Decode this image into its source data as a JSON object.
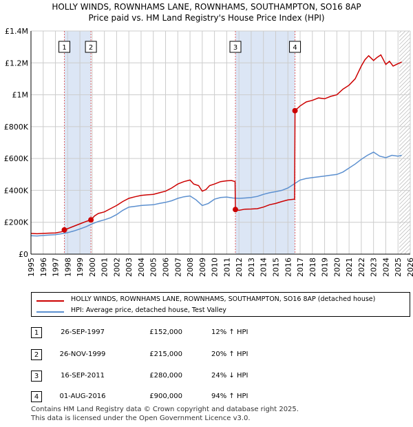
{
  "colors": {
    "property": "#cc0000",
    "hpi": "#5b8fcf",
    "band": "#dce6f5",
    "grid": "#cccccc",
    "sale_line": "#e06060"
  },
  "chart_data": {
    "type": "line",
    "title": "HOLLY WINDS, ROWNHAMS LANE, ROWNHAMS, SOUTHAMPTON, SO16 8AP",
    "subtitle": "Price paid vs. HM Land Registry's House Price Index (HPI)",
    "xlim": [
      1995,
      2026
    ],
    "ylim": [
      0,
      1400000
    ],
    "y_ticks": [
      {
        "value": 0,
        "label": "£0"
      },
      {
        "value": 200000,
        "label": "£200K"
      },
      {
        "value": 400000,
        "label": "£400K"
      },
      {
        "value": 600000,
        "label": "£600K"
      },
      {
        "value": 800000,
        "label": "£800K"
      },
      {
        "value": 1000000,
        "label": "£1M"
      },
      {
        "value": 1200000,
        "label": "£1.2M"
      },
      {
        "value": 1400000,
        "label": "£1.4M"
      }
    ],
    "x_ticks": [
      "1995",
      "1996",
      "1997",
      "1998",
      "1999",
      "2000",
      "2001",
      "2002",
      "2003",
      "2004",
      "2005",
      "2006",
      "2007",
      "2008",
      "2009",
      "2010",
      "2011",
      "2012",
      "2013",
      "2014",
      "2015",
      "2016",
      "2017",
      "2018",
      "2019",
      "2020",
      "2021",
      "2022",
      "2023",
      "2024",
      "2025",
      "2026"
    ],
    "shaded_ranges": [
      [
        1997.73,
        1999.9
      ],
      [
        2011.71,
        2016.58
      ]
    ],
    "future_start": 2025.1,
    "series": [
      {
        "name": "HOLLY WINDS, ROWNHAMS LANE, ROWNHAMS, SOUTHAMPTON, SO16 8AP (detached house)",
        "x": [
          1995.0,
          1995.5,
          1996.0,
          1996.5,
          1997.0,
          1997.5,
          1997.73,
          1998.0,
          1998.5,
          1999.0,
          1999.5,
          1999.9,
          2000.2,
          2000.5,
          2001.0,
          2001.5,
          2002.0,
          2002.5,
          2003.0,
          2003.5,
          2004.0,
          2004.5,
          2005.0,
          2005.5,
          2006.0,
          2006.5,
          2007.0,
          2007.5,
          2008.0,
          2008.3,
          2008.7,
          2009.0,
          2009.3,
          2009.6,
          2010.0,
          2010.5,
          2011.0,
          2011.4,
          2011.68,
          2011.71,
          2012.0,
          2012.5,
          2013.0,
          2013.5,
          2014.0,
          2014.5,
          2015.0,
          2015.5,
          2016.0,
          2016.5,
          2016.55,
          2016.58,
          2017.0,
          2017.5,
          2018.0,
          2018.5,
          2019.0,
          2019.5,
          2020.0,
          2020.5,
          2021.0,
          2021.5,
          2022.0,
          2022.3,
          2022.6,
          2023.0,
          2023.3,
          2023.6,
          2024.0,
          2024.3,
          2024.6,
          2025.0,
          2025.3
        ],
        "y": [
          130000,
          128000,
          130000,
          132000,
          133000,
          140000,
          152000,
          160000,
          175000,
          190000,
          205000,
          215000,
          240000,
          255000,
          265000,
          285000,
          305000,
          330000,
          350000,
          360000,
          368000,
          372000,
          375000,
          385000,
          395000,
          415000,
          440000,
          455000,
          465000,
          440000,
          430000,
          395000,
          405000,
          430000,
          440000,
          455000,
          460000,
          462000,
          455000,
          280000,
          275000,
          282000,
          283000,
          285000,
          295000,
          310000,
          318000,
          330000,
          340000,
          345000,
          345000,
          900000,
          930000,
          955000,
          965000,
          980000,
          975000,
          990000,
          1000000,
          1035000,
          1060000,
          1100000,
          1180000,
          1220000,
          1245000,
          1215000,
          1235000,
          1250000,
          1190000,
          1210000,
          1180000,
          1195000,
          1205000
        ]
      },
      {
        "name": "HPI: Average price, detached house, Test Valley",
        "x": [
          1995.0,
          1995.5,
          1996.0,
          1996.5,
          1997.0,
          1997.5,
          1998.0,
          1998.5,
          1999.0,
          1999.5,
          2000.0,
          2000.5,
          2001.0,
          2001.5,
          2002.0,
          2002.5,
          2003.0,
          2003.5,
          2004.0,
          2004.5,
          2005.0,
          2005.5,
          2006.0,
          2006.5,
          2007.0,
          2007.5,
          2008.0,
          2008.5,
          2009.0,
          2009.5,
          2010.0,
          2010.5,
          2011.0,
          2011.5,
          2012.0,
          2012.5,
          2013.0,
          2013.5,
          2014.0,
          2014.5,
          2015.0,
          2015.5,
          2016.0,
          2016.5,
          2017.0,
          2017.5,
          2018.0,
          2018.5,
          2019.0,
          2019.5,
          2020.0,
          2020.5,
          2021.0,
          2021.5,
          2022.0,
          2022.5,
          2023.0,
          2023.5,
          2024.0,
          2024.5,
          2025.0,
          2025.3
        ],
        "y": [
          116000,
          114000,
          117000,
          120000,
          122000,
          128000,
          135000,
          145000,
          158000,
          172000,
          190000,
          205000,
          215000,
          228000,
          248000,
          275000,
          295000,
          300000,
          305000,
          308000,
          310000,
          318000,
          325000,
          335000,
          350000,
          360000,
          365000,
          340000,
          305000,
          318000,
          345000,
          355000,
          358000,
          352000,
          350000,
          352000,
          355000,
          362000,
          375000,
          385000,
          392000,
          400000,
          415000,
          440000,
          465000,
          475000,
          480000,
          485000,
          490000,
          495000,
          500000,
          515000,
          540000,
          565000,
          595000,
          620000,
          640000,
          615000,
          605000,
          620000,
          615000,
          620000
        ]
      }
    ],
    "sales": [
      {
        "label": "1",
        "x": 1997.73,
        "y": 152000
      },
      {
        "label": "2",
        "x": 1999.9,
        "y": 215000
      },
      {
        "label": "3",
        "x": 2011.71,
        "y": 280000
      },
      {
        "label": "4",
        "x": 2016.58,
        "y": 900000
      }
    ]
  },
  "legend": {
    "property": "HOLLY WINDS, ROWNHAMS LANE, ROWNHAMS, SOUTHAMPTON, SO16 8AP (detached house)",
    "hpi": "HPI: Average price, detached house, Test Valley"
  },
  "sales_table": [
    {
      "num": "1",
      "date": "26-SEP-1997",
      "price": "£152,000",
      "hpi": "12% ↑ HPI"
    },
    {
      "num": "2",
      "date": "26-NOV-1999",
      "price": "£215,000",
      "hpi": "20% ↑ HPI"
    },
    {
      "num": "3",
      "date": "16-SEP-2011",
      "price": "£280,000",
      "hpi": "24% ↓ HPI"
    },
    {
      "num": "4",
      "date": "01-AUG-2016",
      "price": "£900,000",
      "hpi": "94% ↑ HPI"
    }
  ],
  "footer": {
    "line1": "Contains HM Land Registry data © Crown copyright and database right 2025.",
    "line2": "This data is licensed under the Open Government Licence v3.0."
  }
}
